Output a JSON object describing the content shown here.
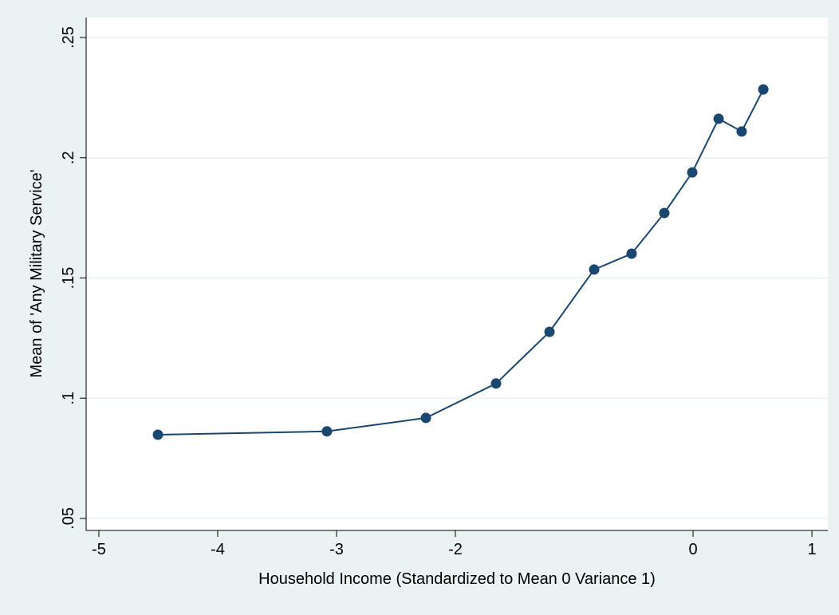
{
  "chart_data": {
    "type": "line",
    "x_label": "Household Income (Standardized to Mean 0 Variance 1)",
    "y_label": "Mean of 'Any Military Service'",
    "x": [
      -4.503,
      -3.081,
      -2.248,
      -1.658,
      -1.208,
      -0.832,
      -0.517,
      -0.242,
      -0.007,
      0.215,
      0.409,
      0.591
    ],
    "series": [
      {
        "color": "#1a476f",
        "values": [
          0.0848,
          0.0862,
          0.0918,
          0.1061,
          0.1276,
          0.1535,
          0.1601,
          0.177,
          0.1939,
          0.2162,
          0.2109,
          0.2284
        ]
      }
    ],
    "xlim": [
      -5.107,
      1.134
    ],
    "ylim": [
      0.045,
      0.2583
    ],
    "xticks": [
      -5,
      -4,
      -3,
      -2,
      0,
      1
    ],
    "yticks": [
      {
        "value": 0.05,
        "label": ".05"
      },
      {
        "value": 0.1,
        "label": ".1"
      },
      {
        "value": 0.15,
        "label": ".15"
      },
      {
        "value": 0.2,
        "label": ".2"
      },
      {
        "value": 0.25,
        "label": ".25"
      }
    ],
    "grid": true
  }
}
